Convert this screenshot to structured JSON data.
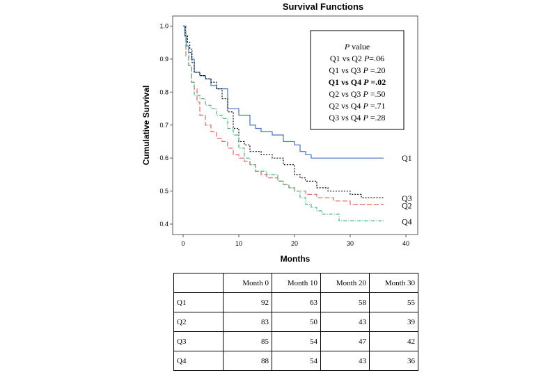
{
  "chart_data": {
    "type": "line",
    "step": true,
    "title": "Survival Functions",
    "xlabel": "Months",
    "ylabel": "Cumulative Survival",
    "xlim": [
      0,
      40
    ],
    "ylim": [
      0.4,
      1.0
    ],
    "xticks": [
      0,
      10,
      20,
      30,
      40
    ],
    "yticks": [
      0.4,
      0.5,
      0.6,
      0.7,
      0.8,
      0.9,
      1.0
    ],
    "ytick_labels": [
      "0.4",
      "0.5",
      "0.6",
      "0.7",
      "0.8",
      "0.9",
      "1.0"
    ],
    "series": [
      {
        "name": "Q1",
        "color": "#4472c4",
        "dash": "solid",
        "x": [
          0,
          0.3,
          0.6,
          1,
          1.5,
          2,
          3,
          4,
          5,
          6,
          8,
          10,
          12,
          13,
          14,
          16,
          18,
          20,
          21,
          22,
          23,
          36
        ],
        "y": [
          1.0,
          0.97,
          0.94,
          0.92,
          0.9,
          0.86,
          0.85,
          0.84,
          0.82,
          0.81,
          0.75,
          0.73,
          0.7,
          0.69,
          0.68,
          0.67,
          0.65,
          0.64,
          0.62,
          0.61,
          0.6,
          0.6
        ]
      },
      {
        "name": "Q2",
        "color": "#e8625c",
        "dash": "longdash",
        "x": [
          0,
          0.5,
          1,
          1.5,
          2,
          2.5,
          3,
          4,
          5,
          6,
          7,
          8,
          9,
          10,
          11,
          12,
          13,
          14,
          15,
          17,
          18,
          19,
          20,
          22,
          24,
          27,
          30,
          36
        ],
        "y": [
          1.0,
          0.91,
          0.88,
          0.83,
          0.81,
          0.77,
          0.73,
          0.7,
          0.68,
          0.66,
          0.65,
          0.63,
          0.61,
          0.6,
          0.59,
          0.58,
          0.56,
          0.55,
          0.54,
          0.53,
          0.52,
          0.51,
          0.5,
          0.49,
          0.48,
          0.47,
          0.46,
          0.46
        ]
      },
      {
        "name": "Q3",
        "color": "#000000",
        "dash": "dotted",
        "x": [
          0,
          0.4,
          0.8,
          1.2,
          1.6,
          2,
          3,
          4,
          5,
          6,
          7,
          8,
          9,
          10,
          11,
          12,
          14,
          16,
          18,
          20,
          21,
          22,
          24,
          26,
          30,
          32,
          36
        ],
        "y": [
          1.0,
          0.97,
          0.95,
          0.93,
          0.89,
          0.86,
          0.85,
          0.84,
          0.83,
          0.81,
          0.78,
          0.74,
          0.69,
          0.65,
          0.64,
          0.62,
          0.61,
          0.6,
          0.58,
          0.55,
          0.54,
          0.53,
          0.51,
          0.5,
          0.49,
          0.48,
          0.48
        ]
      },
      {
        "name": "Q4",
        "color": "#3cb371",
        "dash": "dashdot",
        "x": [
          0,
          0.5,
          1,
          1.5,
          2,
          3,
          4,
          5,
          6,
          7,
          8,
          9,
          10,
          11,
          12,
          13,
          15,
          17,
          18,
          19,
          20,
          21,
          22,
          23,
          24,
          25,
          28,
          36
        ],
        "y": [
          1.0,
          0.93,
          0.88,
          0.83,
          0.79,
          0.78,
          0.76,
          0.75,
          0.73,
          0.72,
          0.69,
          0.67,
          0.63,
          0.6,
          0.58,
          0.56,
          0.55,
          0.53,
          0.52,
          0.51,
          0.5,
          0.48,
          0.46,
          0.45,
          0.44,
          0.43,
          0.41,
          0.41
        ]
      }
    ],
    "series_label_order": [
      "Q1",
      "Q3",
      "Q2",
      "Q4"
    ],
    "pvalue_box": {
      "header_italic": "P",
      "header_rest": " value",
      "rows": [
        {
          "pair": "Q1 vs Q2 ",
          "p": "P",
          "val": "=.06",
          "bold": false
        },
        {
          "pair": "Q1 vs Q3 ",
          "p": "P",
          "val": " =.20",
          "bold": false
        },
        {
          "pair": "Q1 vs Q4 ",
          "p": "P",
          "val": " =.02",
          "bold": true
        },
        {
          "pair": "Q2 vs Q3 ",
          "p": "P",
          "val": " =.50",
          "bold": false
        },
        {
          "pair": "Q2 vs Q4 ",
          "p": "P",
          "val": " =.71",
          "bold": false
        },
        {
          "pair": "Q3 vs Q4 ",
          "p": "P",
          "val": " =.28",
          "bold": false
        }
      ]
    }
  },
  "risk_table": {
    "headers": [
      "",
      "Month 0",
      "Month 10",
      "Month 20",
      "Month 30"
    ],
    "rows": [
      {
        "label": "Q1",
        "values": [
          "92",
          "63",
          "58",
          "55"
        ]
      },
      {
        "label": "Q2",
        "values": [
          "83",
          "50",
          "43",
          "39"
        ]
      },
      {
        "label": "Q3",
        "values": [
          "85",
          "54",
          "47",
          "42"
        ]
      },
      {
        "label": "Q4",
        "values": [
          "88",
          "54",
          "43",
          "36"
        ]
      }
    ]
  }
}
